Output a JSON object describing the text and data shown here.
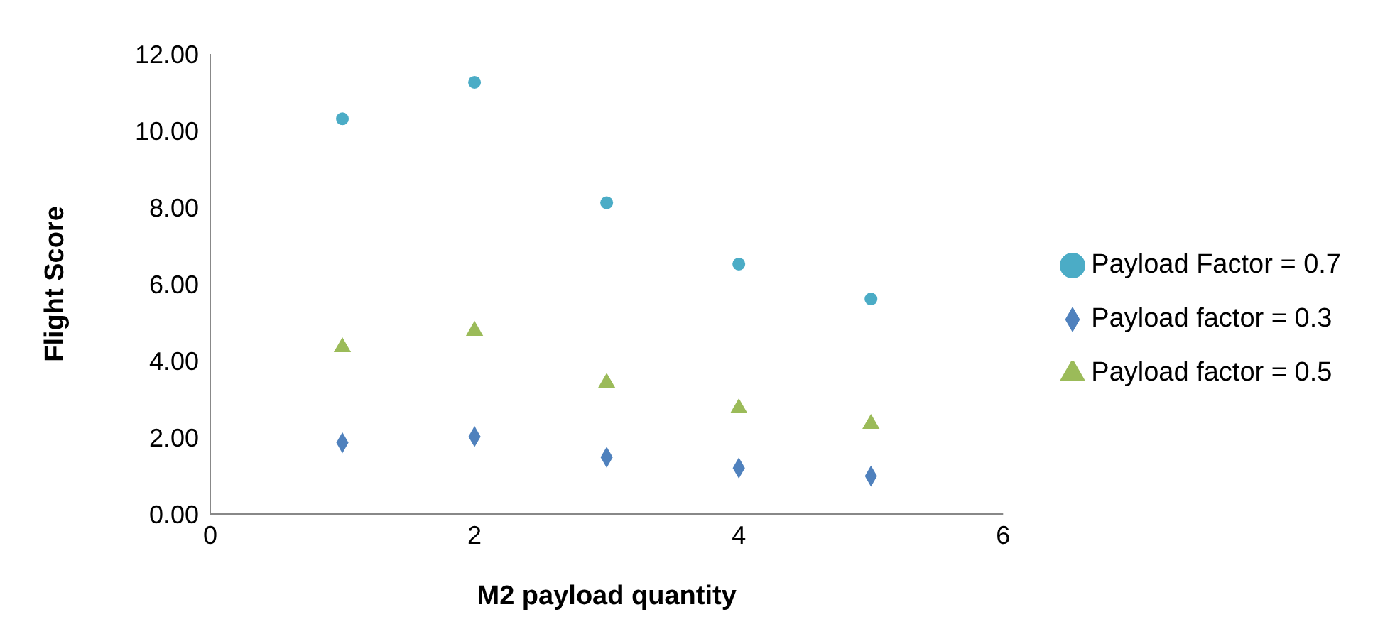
{
  "chart_data": {
    "type": "scatter",
    "xlabel": "M2 payload quantity",
    "ylabel": "Flight Score",
    "x": [
      1,
      2,
      3,
      4,
      5
    ],
    "series": [
      {
        "name": "Payload factor = 0.3",
        "color": "#4f81bd",
        "marker": "diamond",
        "values": [
          1.86,
          2.02,
          1.48,
          1.2,
          0.99
        ]
      },
      {
        "name": "Payload factor = 0.5",
        "color": "#9bbb59",
        "marker": "triangle",
        "values": [
          4.35,
          4.78,
          3.42,
          2.76,
          2.35
        ]
      },
      {
        "name": "Payload Factor = 0.7",
        "color": "#4bacc6",
        "marker": "circle",
        "values": [
          10.31,
          11.26,
          8.12,
          6.52,
          5.61
        ]
      }
    ],
    "xlim": [
      0,
      6
    ],
    "xticks": [
      0,
      2,
      4,
      6
    ],
    "ylim": [
      0,
      12
    ],
    "yticks": [
      {
        "value": 0,
        "label": "0.00"
      },
      {
        "value": 2,
        "label": "2.00"
      },
      {
        "value": 4,
        "label": "4.00"
      },
      {
        "value": 6,
        "label": "6.00"
      },
      {
        "value": 8,
        "label": "8.00"
      },
      {
        "value": 10,
        "label": "10.00"
      },
      {
        "value": 12,
        "label": "12.00"
      }
    ],
    "grid": false,
    "legend": "right"
  }
}
